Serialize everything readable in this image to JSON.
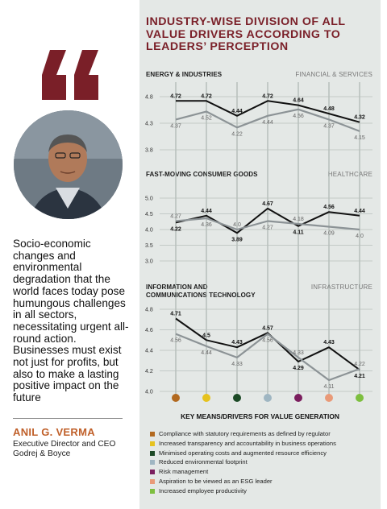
{
  "panel_title": "INDUSTRY-WISE DIVISION OF ALL VALUE DRIVERS ACCORDING TO LEADERS’ PERCEPTION",
  "quote": {
    "text": "Socio-economic changes and environmental degradation that the world faces today pose humungous challenges in all sectors, necessitating urgent all-round action. Businesses must exist not just for profits, but also to make a lasting positive impact on the future",
    "author": "ANIL G. VERMA",
    "role_line1": "Executive Director and CEO",
    "role_line2": "Godrej & Boyce"
  },
  "colors": {
    "quote_mark": "#7a1f28",
    "panel_bg": "#e4e8e6",
    "black_series": "#111111",
    "grey_series": "#8c9396",
    "accent_name": "#c0602a"
  },
  "key_title": "KEY MEANS/DRIVERS FOR VALUE GENERATION",
  "legend": [
    {
      "label": "Compliance with statutory requirements as defined by regulator",
      "color": "#b2691f"
    },
    {
      "label": "Increased transparency and accountability in business operations",
      "color": "#e6c21e"
    },
    {
      "label": "Minimised operating costs and augmented resource efficiency",
      "color": "#1c4a26"
    },
    {
      "label": "Reduced environmental footprint",
      "color": "#9fb6c2"
    },
    {
      "label": "Risk management",
      "color": "#7b1e5e"
    },
    {
      "label": "Aspiration to be viewed as an ESG leader",
      "color": "#e99a78"
    },
    {
      "label": "Increased employee productivity",
      "color": "#7dbf3f"
    }
  ],
  "chart_data": [
    {
      "type": "line",
      "x": [
        1,
        2,
        3,
        4,
        5,
        6,
        7
      ],
      "ylim": [
        3.8,
        4.8
      ],
      "yticks": [
        "4.8",
        "4.3",
        "3.8"
      ],
      "series": [
        {
          "name": "ENERGY & INDUSTRIES",
          "values": [
            4.72,
            4.72,
            4.44,
            4.72,
            4.64,
            4.48,
            4.32
          ],
          "labels": [
            "4.72",
            "4.72",
            "4.44",
            "4.72",
            "4.64",
            "4.48",
            "4.32"
          ]
        },
        {
          "name": "FINANCIAL & SERVICES",
          "values": [
            4.37,
            4.52,
            4.22,
            4.44,
            4.56,
            4.37,
            4.15
          ],
          "labels": [
            "4.37",
            "4.52",
            "4.22",
            "4.44",
            "4.56",
            "4.37",
            "4.15"
          ]
        }
      ]
    },
    {
      "type": "line",
      "x": [
        1,
        2,
        3,
        4,
        5,
        6,
        7
      ],
      "ylim": [
        3.0,
        5.0
      ],
      "yticks": [
        "5.0",
        "4.5",
        "4.0",
        "3.5",
        "3.0"
      ],
      "series": [
        {
          "name": "FAST-MOVING CONSUMER GOODS",
          "values": [
            4.22,
            4.44,
            3.89,
            4.67,
            4.11,
            4.56,
            4.44
          ],
          "labels": [
            "4.22",
            "4.44",
            "3.89",
            "4.67",
            "4.11",
            "4.56",
            "4.44"
          ]
        },
        {
          "name": "HEALTHCARE",
          "values": [
            4.27,
            4.36,
            4.0,
            4.27,
            4.18,
            4.09,
            4.0
          ],
          "labels": [
            "4.27",
            "4.36",
            "4.0",
            "4.27",
            "4.18",
            "4.09",
            "4.0"
          ]
        }
      ]
    },
    {
      "type": "line",
      "x": [
        1,
        2,
        3,
        4,
        5,
        6,
        7
      ],
      "ylim": [
        4.0,
        4.8
      ],
      "yticks": [
        "4.8",
        "4.6",
        "4.4",
        "4.2",
        "4.0"
      ],
      "series": [
        {
          "name": "INFORMATION AND COMMUNICATIONS TECHNOLOGY",
          "values": [
            4.71,
            4.5,
            4.43,
            4.57,
            4.29,
            4.43,
            4.21
          ],
          "labels": [
            "4.71",
            "4.5",
            "4.43",
            "4.57",
            "4.29",
            "4.43",
            "4.21"
          ]
        },
        {
          "name": "INFRASTRUCTURE",
          "values": [
            4.56,
            4.44,
            4.33,
            4.56,
            4.33,
            4.11,
            4.22
          ],
          "labels": [
            "4.56",
            "4.44",
            "4.33",
            "4.56",
            "4.33",
            "4.11",
            "4.22"
          ]
        }
      ]
    }
  ],
  "chart_titles": [
    {
      "left": "ENERGY & INDUSTRIES",
      "right": "FINANCIAL & SERVICES"
    },
    {
      "left": "FAST-MOVING CONSUMER GOODS",
      "right": "HEALTHCARE"
    },
    {
      "left_line1": "INFORMATION AND",
      "left_line2": "COMMUNICATIONS TECHNOLOGY",
      "right": "INFRASTRUCTURE"
    }
  ]
}
